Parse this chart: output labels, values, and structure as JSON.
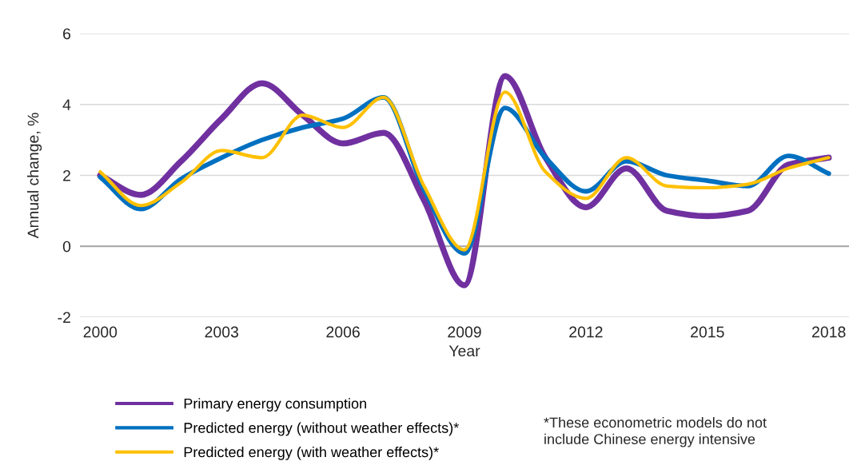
{
  "chart_data": {
    "type": "line",
    "xlabel": "Year",
    "ylabel": "Annual change, %",
    "x": [
      2000,
      2001,
      2002,
      2003,
      2004,
      2005,
      2006,
      2007,
      2008,
      2009,
      2010,
      2011,
      2012,
      2013,
      2014,
      2015,
      2016,
      2017,
      2018
    ],
    "series": [
      {
        "name": "Primary energy consumption",
        "color": "#7030a0",
        "values": [
          2.0,
          1.45,
          2.4,
          3.6,
          4.6,
          3.7,
          2.9,
          3.2,
          1.3,
          -1.1,
          4.8,
          2.5,
          1.1,
          2.2,
          1.0,
          0.85,
          1.0,
          2.3,
          2.5
        ]
      },
      {
        "name": "Predicted energy (without weather effects)*",
        "color": "#0070c0",
        "values": [
          1.95,
          1.05,
          1.9,
          2.5,
          3.0,
          3.35,
          3.6,
          4.2,
          1.6,
          -0.2,
          3.9,
          2.5,
          1.55,
          2.4,
          2.0,
          1.85,
          1.7,
          2.55,
          2.05
        ]
      },
      {
        "name": "Predicted energy (with weather effects)*",
        "color": "#ffc000",
        "values": [
          2.1,
          1.15,
          1.8,
          2.7,
          2.5,
          3.7,
          3.35,
          4.2,
          1.7,
          -0.1,
          4.35,
          2.1,
          1.35,
          2.5,
          1.7,
          1.65,
          1.75,
          2.2,
          2.5
        ]
      }
    ],
    "xlim": [
      1999.5,
      2018.5
    ],
    "xticks": [
      2000,
      2003,
      2006,
      2009,
      2012,
      2015,
      2018
    ],
    "ylim": [
      -2,
      6
    ],
    "yticks": [
      -2,
      0,
      2,
      4,
      6
    ],
    "ref_lines": [
      {
        "axis": "y",
        "value": 0,
        "color": "#a6a6a6"
      }
    ],
    "annotations": [
      "*These econometric models do not\ninclude Chinese energy intensive"
    ],
    "grid": "y",
    "legend": "bottom",
    "marker": "none",
    "line_style": "solid"
  }
}
